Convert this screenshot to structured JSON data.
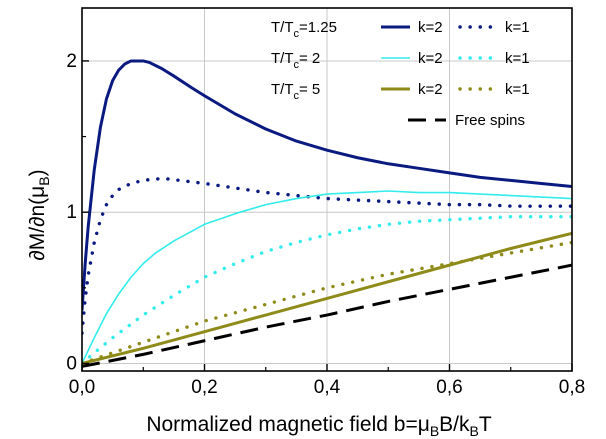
{
  "chart_data": {
    "type": "line",
    "xlabel": {
      "main": "Normalized magnetic field b=μ",
      "sub1": "B",
      "mid": "B/k",
      "sub2": "B",
      "tail": "T"
    },
    "ylabel": {
      "main": "∂M/∂n(μ",
      "sub": "B",
      "tail": ")"
    },
    "xlim": [
      0,
      0.8
    ],
    "ylim": [
      -0.05,
      2.35
    ],
    "x_ticks": [
      {
        "value": 0.0,
        "label": "0,0"
      },
      {
        "value": 0.2,
        "label": "0,2"
      },
      {
        "value": 0.4,
        "label": "0,4"
      },
      {
        "value": 0.6,
        "label": "0,6"
      },
      {
        "value": 0.8,
        "label": "0,8"
      }
    ],
    "y_ticks": [
      {
        "value": 0,
        "label": "0"
      },
      {
        "value": 1,
        "label": "1"
      },
      {
        "value": 2,
        "label": "2"
      }
    ],
    "grid": true,
    "legend_position": "top-right",
    "legend_rows": [
      {
        "label_main": "T/T",
        "label_sub": "c",
        "label_tail": "=1.25",
        "solid": "k=2",
        "dotted": "k=1",
        "color": "#0a1a80"
      },
      {
        "label_main": "T/T",
        "label_sub": "c",
        "label_tail": "= 2",
        "solid": "k=2",
        "dotted": "k=1",
        "color": "#33ecec"
      },
      {
        "label_main": "T/T",
        "label_sub": "c",
        "label_tail": "= 5",
        "solid": "k=2",
        "dotted": "k=1",
        "color": "#8f8b1a"
      }
    ],
    "free_spins_label": "Free spins",
    "series": [
      {
        "id": "t125-k2",
        "color": "#0a1a80",
        "style": "solid",
        "width": 3,
        "x": [
          0.0,
          0.005,
          0.01,
          0.02,
          0.03,
          0.04,
          0.05,
          0.06,
          0.07,
          0.08,
          0.09,
          0.1,
          0.11,
          0.12,
          0.13,
          0.15,
          0.18,
          0.2,
          0.25,
          0.3,
          0.35,
          0.4,
          0.45,
          0.5,
          0.55,
          0.6,
          0.65,
          0.7,
          0.75,
          0.8
        ],
        "y": [
          0.35,
          0.65,
          0.9,
          1.28,
          1.56,
          1.75,
          1.87,
          1.94,
          1.98,
          2.0,
          2.0,
          2.0,
          1.99,
          1.97,
          1.95,
          1.9,
          1.82,
          1.77,
          1.65,
          1.55,
          1.47,
          1.41,
          1.36,
          1.32,
          1.29,
          1.26,
          1.23,
          1.21,
          1.19,
          1.17
        ]
      },
      {
        "id": "t125-k1",
        "color": "#0a1a80",
        "style": "dotted",
        "width": 3.4,
        "x": [
          0.0,
          0.005,
          0.01,
          0.02,
          0.03,
          0.04,
          0.05,
          0.06,
          0.08,
          0.1,
          0.12,
          0.14,
          0.16,
          0.2,
          0.25,
          0.3,
          0.35,
          0.4,
          0.45,
          0.5,
          0.55,
          0.6,
          0.65,
          0.7,
          0.75,
          0.8
        ],
        "y": [
          0.2,
          0.42,
          0.58,
          0.8,
          0.95,
          1.05,
          1.11,
          1.15,
          1.19,
          1.21,
          1.22,
          1.22,
          1.21,
          1.19,
          1.16,
          1.13,
          1.11,
          1.09,
          1.08,
          1.07,
          1.06,
          1.05,
          1.05,
          1.04,
          1.04,
          1.04
        ]
      },
      {
        "id": "t2-k2",
        "color": "#33ecec",
        "style": "solid",
        "width": 1.6,
        "x": [
          0.0,
          0.02,
          0.04,
          0.06,
          0.08,
          0.1,
          0.12,
          0.15,
          0.2,
          0.25,
          0.3,
          0.35,
          0.4,
          0.45,
          0.5,
          0.55,
          0.6,
          0.65,
          0.7,
          0.75,
          0.8
        ],
        "y": [
          0.0,
          0.17,
          0.33,
          0.46,
          0.57,
          0.66,
          0.73,
          0.81,
          0.92,
          0.99,
          1.05,
          1.09,
          1.12,
          1.13,
          1.14,
          1.13,
          1.13,
          1.12,
          1.11,
          1.1,
          1.09
        ]
      },
      {
        "id": "t2-k1",
        "color": "#33ecec",
        "style": "dotted",
        "width": 3.4,
        "x": [
          0.0,
          0.02,
          0.05,
          0.1,
          0.15,
          0.2,
          0.25,
          0.3,
          0.35,
          0.4,
          0.45,
          0.5,
          0.55,
          0.6,
          0.65,
          0.7,
          0.75,
          0.8
        ],
        "y": [
          0.0,
          0.07,
          0.17,
          0.32,
          0.45,
          0.57,
          0.66,
          0.74,
          0.8,
          0.85,
          0.89,
          0.92,
          0.94,
          0.95,
          0.96,
          0.97,
          0.97,
          0.97
        ]
      },
      {
        "id": "t5-k2",
        "color": "#8f8b1a",
        "style": "solid",
        "width": 3,
        "x": [
          0.0,
          0.1,
          0.2,
          0.3,
          0.4,
          0.5,
          0.6,
          0.7,
          0.8
        ],
        "y": [
          0.0,
          0.1,
          0.21,
          0.32,
          0.43,
          0.54,
          0.65,
          0.76,
          0.86
        ]
      },
      {
        "id": "t5-k1",
        "color": "#8f8b1a",
        "style": "dotted",
        "width": 3.4,
        "x": [
          0.0,
          0.1,
          0.2,
          0.3,
          0.4,
          0.5,
          0.6,
          0.7,
          0.8
        ],
        "y": [
          0.0,
          0.14,
          0.28,
          0.39,
          0.5,
          0.59,
          0.66,
          0.73,
          0.8
        ]
      },
      {
        "id": "free-spins",
        "color": "#000000",
        "style": "dashed",
        "width": 3,
        "x": [
          0.0,
          0.1,
          0.2,
          0.3,
          0.4,
          0.5,
          0.6,
          0.7,
          0.8
        ],
        "y": [
          -0.02,
          0.06,
          0.15,
          0.24,
          0.32,
          0.41,
          0.49,
          0.57,
          0.65
        ]
      }
    ]
  }
}
